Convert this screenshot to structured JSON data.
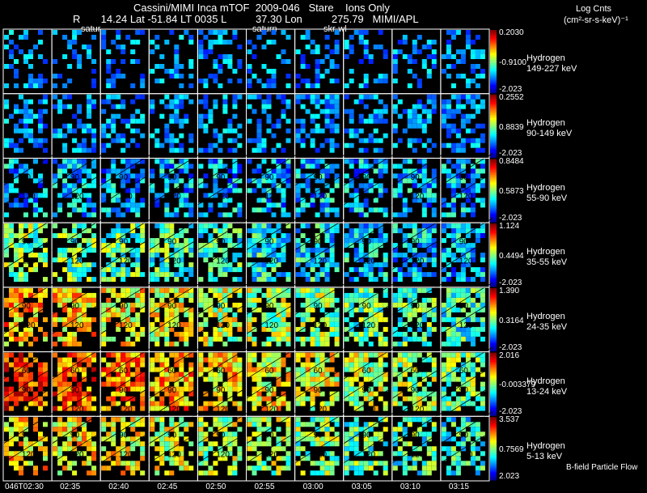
{
  "header": {
    "title": "Cassini/MIMI Inca mTOF  2009-046   Stare    Ions Only",
    "geo_line": "R       14.24 Lat -51.84 LT 0035 L          37.30 Lon          275.79   MIMI/APL",
    "units_title": "Log Cnts",
    "units_sub": "(cm²-sr-s-keV)⁻¹",
    "planet_labels": [
      "satur",
      "saturn",
      "skr-wl"
    ]
  },
  "chart_data": {
    "type": "heatmap",
    "rows": [
      {
        "species": "Hydrogen",
        "energy": "149-227 keV",
        "cb_max": "0.2030",
        "cb_mid": "-0.9100",
        "cb_min": "-2.023",
        "level": 0.05,
        "contours": [],
        "fill": 0.32
      },
      {
        "species": "Hydrogen",
        "energy": "90-149 keV",
        "cb_max": "0.2552",
        "cb_mid": "0.8839",
        "cb_min": "-2.023",
        "level": 0.1,
        "contours": [],
        "fill": 0.42
      },
      {
        "species": "Hydrogen",
        "energy": "55-90 keV",
        "cb_max": "0.8484",
        "cb_mid": "0.5873",
        "cb_min": "-2.023",
        "level": 0.3,
        "contours": [
          "90",
          "120"
        ],
        "fill": 0.55
      },
      {
        "species": "Hydrogen",
        "energy": "35-55 keV",
        "cb_max": "1.124",
        "cb_mid": "0.4494",
        "cb_min": "-2.023",
        "level": 0.5,
        "contours": [
          "90",
          "120"
        ],
        "fill": 0.65
      },
      {
        "species": "Hydrogen",
        "energy": "24-35 keV",
        "cb_max": "1.390",
        "cb_mid": "0.3164",
        "cb_min": "-2.023",
        "level": 0.7,
        "contours": [
          "90",
          "120"
        ],
        "fill": 0.7
      },
      {
        "species": "Hydrogen",
        "energy": "13-24 keV",
        "cb_max": "2.016",
        "cb_mid": "-0.003379",
        "cb_min": "-2.023",
        "level": 0.82,
        "contours": [
          "60",
          "90",
          "120"
        ],
        "fill": 0.72
      },
      {
        "species": "Hydrogen",
        "energy": "5-13 keV",
        "cb_max": "3.537",
        "cb_mid": "0.7569",
        "cb_min": "2.023",
        "level": 0.68,
        "contours": [
          "90",
          "120"
        ],
        "fill": 0.6
      }
    ],
    "time_labels": [
      "046T02:30",
      "02:35",
      "02:40",
      "02:45",
      "02:50",
      "02:55",
      "03:00",
      "03:05",
      "03:10",
      "03:15"
    ],
    "column_count": 10
  },
  "footer": {
    "flow_label": "B-field Particle Flow"
  }
}
